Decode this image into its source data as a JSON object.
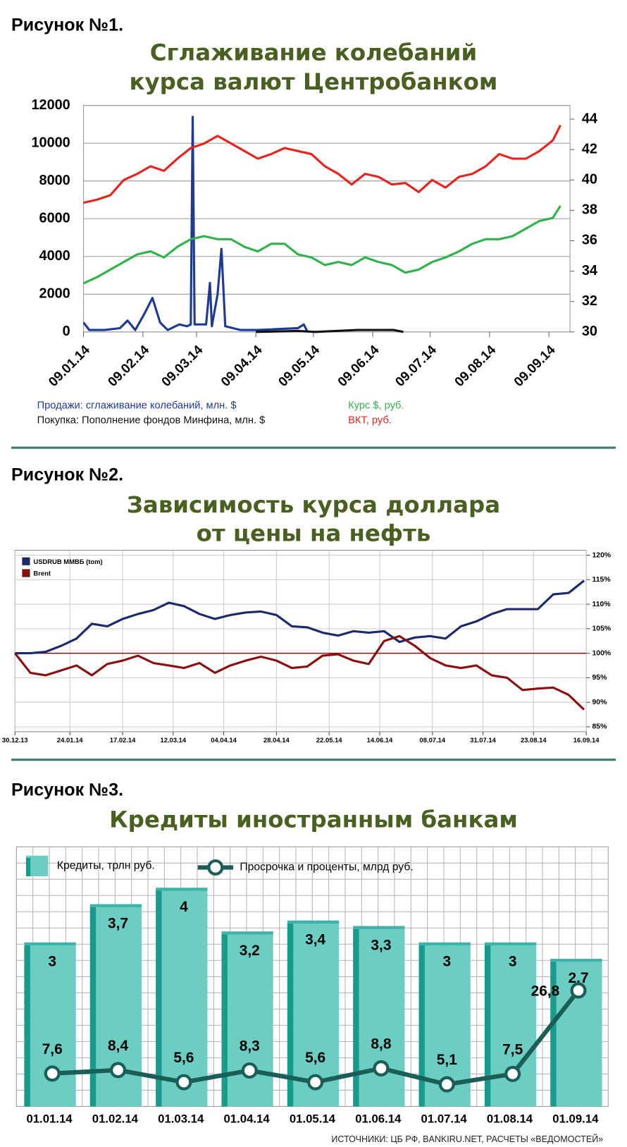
{
  "chart_data": [
    {
      "type": "line",
      "label": "Рисунок №1.",
      "title": [
        "Сглаживание колебаний",
        "курса валют Центробанком"
      ],
      "x": [
        "09.01.14",
        "16.01.14",
        "23.01.14",
        "30.01.14",
        "06.02.14",
        "13.02.14",
        "20.02.14",
        "27.02.14",
        "06.03.14",
        "13.03.14",
        "20.03.14",
        "27.03.14",
        "03.04.14",
        "10.04.14",
        "17.04.14",
        "24.04.14",
        "01.05.14",
        "08.05.14",
        "15.05.14",
        "22.05.14",
        "29.05.14",
        "05.06.14",
        "12.06.14",
        "19.06.14",
        "26.06.14",
        "03.07.14",
        "10.07.14",
        "17.07.14",
        "24.07.14",
        "31.07.14",
        "07.08.14",
        "14.08.14",
        "21.08.14",
        "28.08.14",
        "04.09.14",
        "11.09.14",
        "15.09.14"
      ],
      "xlim": [
        "09.01.14",
        "20.09.14"
      ],
      "xticks": [
        "09.01.14",
        "09.02.14",
        "09.03.14",
        "09.04.14",
        "09.05.14",
        "09.06.14",
        "09.07.14",
        "09.08.14",
        "09.09.14"
      ],
      "ylim": [
        0,
        12000
      ],
      "yticks": [
        0,
        2000,
        4000,
        6000,
        8000,
        10000,
        12000
      ],
      "y2lim": [
        30,
        44.9
      ],
      "y2ticks": [
        30,
        32,
        34,
        36,
        38,
        40,
        42,
        44
      ],
      "grid": true,
      "series": [
        {
          "name": "Продажи: сглаживание колебаний, млн. $",
          "color": "#1f3a93",
          "x": [
            "09.01.14",
            "12.01.14",
            "20.01.14",
            "28.01.14",
            "01.02.14",
            "05.02.14",
            "10.02.14",
            "14.02.14",
            "18.02.14",
            "22.02.14",
            "28.02.14",
            "04.03.14",
            "06.03.14",
            "07.03.14",
            "08.03.14",
            "14.03.14",
            "16.03.14",
            "17.03.14",
            "20.03.14",
            "22.03.14",
            "24.03.14",
            "01.04.14",
            "10.04.14",
            "20.04.14",
            "01.05.14",
            "04.05.14",
            "06.05.14"
          ],
          "values": [
            500,
            100,
            100,
            200,
            600,
            100,
            1000,
            1800,
            500,
            100,
            400,
            300,
            400,
            11400,
            400,
            400,
            2600,
            300,
            2000,
            4400,
            300,
            100,
            100,
            150,
            200,
            400,
            0
          ]
        },
        {
          "name": "Покупка: Пополнение фондов Минфина, млн. $",
          "color": "#111111",
          "x": [
            "09.04.14",
            "01.05.14",
            "10.05.14",
            "01.06.14",
            "15.06.14",
            "20.06.14",
            "25.06.14"
          ],
          "values": [
            0,
            50,
            0,
            100,
            100,
            100,
            0
          ]
        },
        {
          "name": "Курс $, руб.",
          "color": "#2db34a",
          "axis": "y2",
          "values": [
            33.2,
            33.6,
            34.1,
            34.6,
            35.1,
            35.3,
            34.9,
            35.6,
            36.1,
            36.3,
            36.1,
            36.1,
            35.6,
            35.3,
            35.8,
            35.8,
            35.1,
            34.9,
            34.4,
            34.6,
            34.4,
            34.9,
            34.6,
            34.4,
            33.9,
            34.1,
            34.6,
            34.9,
            35.3,
            35.8,
            36.1,
            36.1,
            36.3,
            36.8,
            37.3,
            37.5,
            38.3
          ]
        },
        {
          "name": "ВКТ, руб.",
          "color": "#e8221c",
          "axis": "y2",
          "values": [
            38.5,
            38.7,
            39,
            40,
            40.4,
            40.9,
            40.6,
            41.4,
            42.1,
            42.4,
            42.9,
            42.4,
            41.9,
            41.4,
            41.7,
            42.1,
            41.9,
            41.7,
            40.9,
            40.4,
            39.7,
            40.4,
            40.2,
            39.7,
            39.8,
            39.2,
            40,
            39.5,
            40.2,
            40.4,
            40.9,
            41.7,
            41.4,
            41.4,
            41.9,
            42.6,
            43.6
          ]
        }
      ]
    },
    {
      "type": "line",
      "label": "Рисунок №2.",
      "title": [
        "Зависимость курса доллара",
        "от цены на нефть"
      ],
      "x": [
        "30.12.13",
        "06.01.14",
        "13.01.14",
        "20.01.14",
        "27.01.14",
        "03.02.14",
        "10.02.14",
        "17.02.14",
        "24.02.14",
        "03.03.14",
        "10.03.14",
        "17.03.14",
        "24.03.14",
        "31.03.14",
        "07.04.14",
        "14.04.14",
        "21.04.14",
        "28.04.14",
        "05.05.14",
        "12.05.14",
        "19.05.14",
        "26.05.14",
        "02.06.14",
        "09.06.14",
        "16.06.14",
        "23.06.14",
        "30.06.14",
        "07.07.14",
        "14.07.14",
        "21.07.14",
        "28.07.14",
        "04.08.14",
        "11.08.14",
        "18.08.14",
        "25.08.14",
        "01.09.14",
        "08.09.14",
        "15.09.14"
      ],
      "xlim": [
        "30.12.13",
        "16.09.14"
      ],
      "xticks": [
        "30.12.13",
        "24.01.14",
        "17.02.14",
        "12.03.14",
        "04.04.14",
        "28.04.14",
        "22.05.14",
        "14.06.14",
        "08.07.14",
        "31.07.14",
        "23.08.14",
        "16.09.14"
      ],
      "ylim": [
        84,
        121
      ],
      "yticks": [
        {
          "value": 85,
          "label": "85%"
        },
        {
          "value": 90,
          "label": "90%"
        },
        {
          "value": 95,
          "label": "95%"
        },
        {
          "value": 100,
          "label": "100%"
        },
        {
          "value": 105,
          "label": "105%"
        },
        {
          "value": 110,
          "label": "110%"
        },
        {
          "value": 115,
          "label": "115%"
        },
        {
          "value": 120,
          "label": "120%"
        }
      ],
      "reference_line": 100,
      "grid": true,
      "series": [
        {
          "name": "USDRUB ММВБ (tom)",
          "color": "#1b2a6b",
          "values": [
            100,
            100,
            100.3,
            101.5,
            103,
            106,
            105.5,
            107,
            108,
            108.8,
            110.3,
            109.6,
            108,
            107,
            107.8,
            108.3,
            108.5,
            107.8,
            105.5,
            105.3,
            104.2,
            103.6,
            104.5,
            104.2,
            104.5,
            102.3,
            103.2,
            103.5,
            103,
            105.5,
            106.5,
            108,
            109,
            109,
            109,
            112,
            112.3,
            114.8
          ]
        },
        {
          "name": "Brent",
          "color": "#8b0f0f",
          "values": [
            100,
            96,
            95.5,
            96.5,
            97.5,
            95.5,
            97.8,
            98.5,
            99.5,
            98,
            97.5,
            97,
            98,
            96,
            97.5,
            98.5,
            99.3,
            98.5,
            97,
            97.3,
            99.5,
            99.8,
            98.5,
            97.8,
            102.5,
            103.5,
            101.5,
            99,
            97.5,
            97,
            97.5,
            95.5,
            95,
            92.5,
            92.8,
            93,
            91.5,
            88.5
          ]
        }
      ]
    },
    {
      "type": "bar",
      "label": "Рисунок №3.",
      "title": [
        "Кредиты иностранным банкам"
      ],
      "categories": [
        "01.01.14",
        "01.02.14",
        "01.03.14",
        "01.04.14",
        "01.05.14",
        "01.06.14",
        "01.07.14",
        "01.08.14",
        "01.09.14"
      ],
      "ylim": [
        0,
        4.75
      ],
      "y2lim": [
        0,
        60
      ],
      "grid": true,
      "series": [
        {
          "name": "Кредиты, трлн руб.",
          "type": "bar",
          "color": "#6ccdc2",
          "values": [
            3,
            3.7,
            4,
            3.2,
            3.4,
            3.3,
            3,
            3,
            2.7
          ],
          "value_labels": [
            "3",
            "3,7",
            "4",
            "3,2",
            "3,4",
            "3,3",
            "3",
            "3",
            "2,7"
          ]
        },
        {
          "name": "Просрочка и проценты, млрд руб.",
          "type": "line",
          "axis": "y2",
          "color": "#1b5e58",
          "values": [
            7.6,
            8.4,
            5.6,
            8.3,
            5.6,
            8.8,
            5.1,
            7.5,
            26.8
          ],
          "value_labels": [
            "7,6",
            "8,4",
            "5,6",
            "8,3",
            "5,6",
            "8,8",
            "5,1",
            "7,5",
            "26,8"
          ]
        }
      ]
    }
  ],
  "source": "ИСТОЧНИКИ: ЦБ РФ, BANKIRU.NET, РАСЧЕТЫ «ВЕДОМОСТЕЙ»"
}
